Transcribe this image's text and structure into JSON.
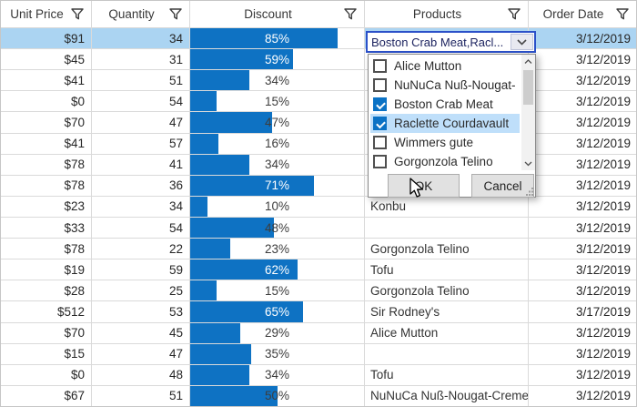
{
  "colors": {
    "bar_blue": "#0e72c3",
    "selection_blue": "#abd4f2",
    "checkbox_blue": "#0b72c5",
    "item_highlight_blue": "#bfdffa",
    "combo_focus_border_blue": "#2b50c8",
    "grid_line": "#dadada"
  },
  "icons": {
    "filter": "funnel-icon",
    "combo_open": "chevron-down-icon",
    "scroll_up": "chevron-up-icon",
    "scroll_down": "chevron-down-icon",
    "popup_resize": "resize-grip",
    "pointer": "mouse-arrow-cursor"
  },
  "columns": [
    {
      "label": "Unit Price"
    },
    {
      "label": "Quantity"
    },
    {
      "label": "Discount"
    },
    {
      "label": "Products"
    },
    {
      "label": "Order Date"
    }
  ],
  "selected_row_index": 0,
  "rows": [
    {
      "unit_price": "$91",
      "quantity": 34,
      "discount_pct": 85,
      "product": "",
      "order_date": "3/12/2019",
      "selected": true
    },
    {
      "unit_price": "$45",
      "quantity": 31,
      "discount_pct": 59,
      "product": "",
      "order_date": "3/12/2019"
    },
    {
      "unit_price": "$41",
      "quantity": 51,
      "discount_pct": 34,
      "product": "",
      "order_date": "3/12/2019"
    },
    {
      "unit_price": "$0",
      "quantity": 54,
      "discount_pct": 15,
      "product": "",
      "order_date": "3/12/2019"
    },
    {
      "unit_price": "$70",
      "quantity": 47,
      "discount_pct": 47,
      "product": "",
      "order_date": "3/12/2019"
    },
    {
      "unit_price": "$41",
      "quantity": 57,
      "discount_pct": 16,
      "product": "",
      "order_date": "3/12/2019"
    },
    {
      "unit_price": "$78",
      "quantity": 41,
      "discount_pct": 34,
      "product": "",
      "order_date": "3/12/2019"
    },
    {
      "unit_price": "$78",
      "quantity": 36,
      "discount_pct": 71,
      "product": "",
      "order_date": "3/12/2019"
    },
    {
      "unit_price": "$23",
      "quantity": 34,
      "discount_pct": 10,
      "product": "Konbu",
      "order_date": "3/12/2019"
    },
    {
      "unit_price": "$33",
      "quantity": 54,
      "discount_pct": 48,
      "product": "",
      "order_date": "3/12/2019"
    },
    {
      "unit_price": "$78",
      "quantity": 22,
      "discount_pct": 23,
      "product": "Gorgonzola Telino",
      "order_date": "3/12/2019"
    },
    {
      "unit_price": "$19",
      "quantity": 59,
      "discount_pct": 62,
      "product": "Tofu",
      "order_date": "3/12/2019"
    },
    {
      "unit_price": "$28",
      "quantity": 25,
      "discount_pct": 15,
      "product": "Gorgonzola Telino",
      "order_date": "3/12/2019"
    },
    {
      "unit_price": "$512",
      "quantity": 53,
      "discount_pct": 65,
      "product": "Sir Rodney's",
      "order_date": "3/17/2019"
    },
    {
      "unit_price": "$70",
      "quantity": 45,
      "discount_pct": 29,
      "product": "Alice Mutton",
      "order_date": "3/12/2019"
    },
    {
      "unit_price": "$15",
      "quantity": 47,
      "discount_pct": 35,
      "product": "",
      "order_date": "3/12/2019"
    },
    {
      "unit_price": "$0",
      "quantity": 48,
      "discount_pct": 34,
      "product": "Tofu",
      "order_date": "3/12/2019"
    },
    {
      "unit_price": "$67",
      "quantity": 51,
      "discount_pct": 50,
      "product": "NuNuCa Nuß-Nougat-Creme",
      "order_date": "3/12/2019"
    }
  ],
  "products_editor": {
    "display_value": "Boston Crab Meat,Racl...",
    "items": [
      {
        "label": "Alice Mutton",
        "checked": false,
        "highlighted": false
      },
      {
        "label": "NuNuCa Nuß-Nougat-",
        "checked": false,
        "highlighted": false
      },
      {
        "label": "Boston Crab Meat",
        "checked": true,
        "highlighted": false
      },
      {
        "label": "Raclette Courdavault",
        "checked": true,
        "highlighted": true
      },
      {
        "label": "Wimmers gute",
        "checked": false,
        "highlighted": false
      },
      {
        "label": "Gorgonzola Telino",
        "checked": false,
        "highlighted": false
      }
    ],
    "ok_label": "OK",
    "cancel_label": "Cancel"
  }
}
